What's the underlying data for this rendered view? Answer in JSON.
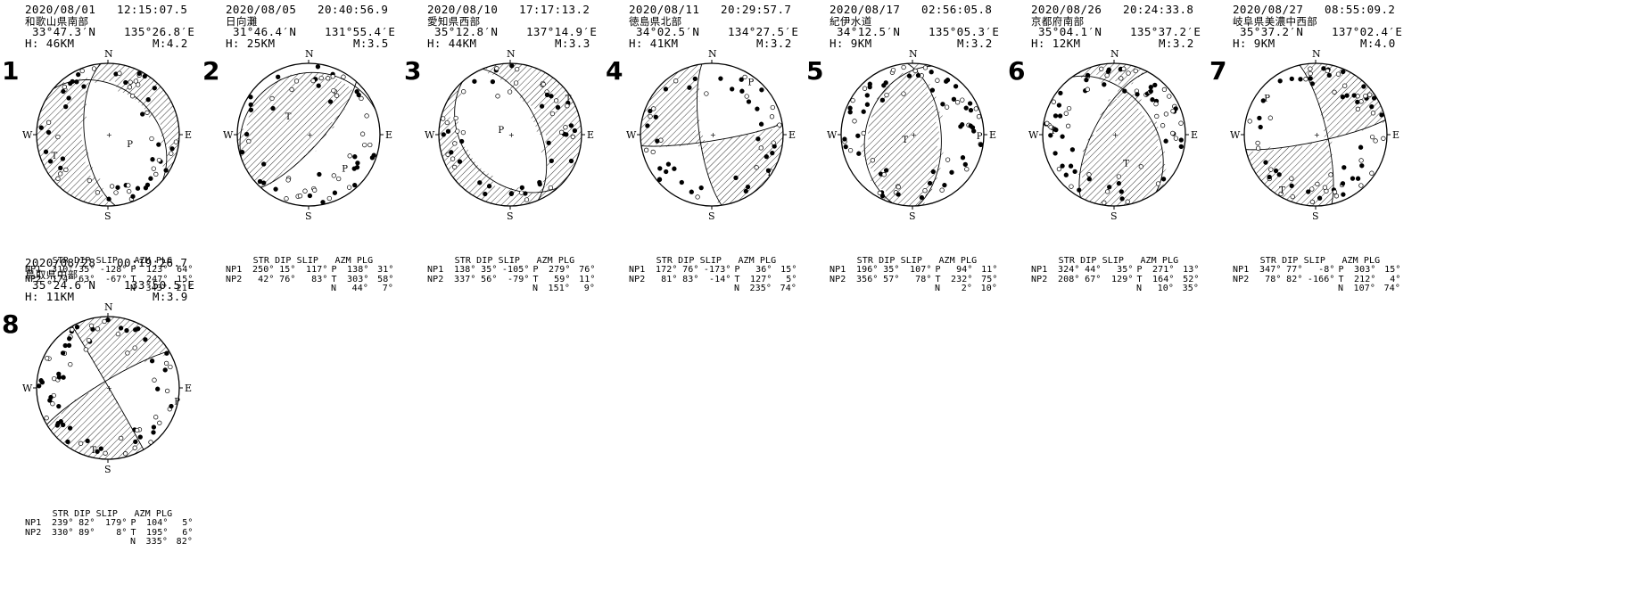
{
  "events": [
    {
      "id": "1",
      "date": "2020/08/01",
      "time": "12:15:07.5",
      "region": "和歌山県南部",
      "lat": "33°47.3′N",
      "lon": "135°26.8′E",
      "depth": "H: 46KM",
      "mag": "M:4.2",
      "np1": {
        "str": "310°",
        "dip": "35°",
        "slip": "-128°"
      },
      "np2": {
        "str": "174°",
        "dip": "63°",
        "slip": "-67°"
      },
      "p": {
        "azm": "123°",
        "plg": "64°"
      },
      "t": {
        "azm": "247°",
        "plg": "15°"
      },
      "n": {
        "azm": "343°",
        "plg": "21°"
      }
    },
    {
      "id": "2",
      "date": "2020/08/05",
      "time": "20:40:56.9",
      "region": "日向灘",
      "lat": "31°46.4′N",
      "lon": "131°55.4′E",
      "depth": "H: 25KM",
      "mag": "M:3.5",
      "np1": {
        "str": "250°",
        "dip": "15°",
        "slip": "117°"
      },
      "np2": {
        "str": "42°",
        "dip": "76°",
        "slip": "83°"
      },
      "p": {
        "azm": "138°",
        "plg": "31°"
      },
      "t": {
        "azm": "303°",
        "plg": "58°"
      },
      "n": {
        "azm": "44°",
        "plg": "7°"
      }
    },
    {
      "id": "3",
      "date": "2020/08/10",
      "time": "17:17:13.2",
      "region": "愛知県西部",
      "lat": "35°12.8′N",
      "lon": "137°14.9′E",
      "depth": "H: 44KM",
      "mag": "M:3.3",
      "np1": {
        "str": "138°",
        "dip": "35°",
        "slip": "-105°"
      },
      "np2": {
        "str": "337°",
        "dip": "56°",
        "slip": "-79°"
      },
      "p": {
        "azm": "279°",
        "plg": "76°"
      },
      "t": {
        "azm": "59°",
        "plg": "11°"
      },
      "n": {
        "azm": "151°",
        "plg": "9°"
      }
    },
    {
      "id": "4",
      "date": "2020/08/11",
      "time": "20:29:57.7",
      "region": "徳島県北部",
      "lat": "34°02.5′N",
      "lon": "134°27.5′E",
      "depth": "H: 41KM",
      "mag": "M:3.2",
      "np1": {
        "str": "172°",
        "dip": "76°",
        "slip": "-173°"
      },
      "np2": {
        "str": "81°",
        "dip": "83°",
        "slip": "-14°"
      },
      "p": {
        "azm": "36°",
        "plg": "15°"
      },
      "t": {
        "azm": "127°",
        "plg": "5°"
      },
      "n": {
        "azm": "235°",
        "plg": "74°"
      }
    },
    {
      "id": "5",
      "date": "2020/08/17",
      "time": "02:56:05.8",
      "region": "紀伊水道",
      "lat": "34°12.5′N",
      "lon": "135°05.3′E",
      "depth": "H: 9KM",
      "mag": "M:3.2",
      "np1": {
        "str": "196°",
        "dip": "35°",
        "slip": "107°"
      },
      "np2": {
        "str": "356°",
        "dip": "57°",
        "slip": "78°"
      },
      "p": {
        "azm": "94°",
        "plg": "11°"
      },
      "t": {
        "azm": "232°",
        "plg": "75°"
      },
      "n": {
        "azm": "2°",
        "plg": "10°"
      }
    },
    {
      "id": "6",
      "date": "2020/08/26",
      "time": "20:24:33.8",
      "region": "京都府南部",
      "lat": "35°04.1′N",
      "lon": "135°37.2′E",
      "depth": "H: 12KM",
      "mag": "M:3.2",
      "np1": {
        "str": "324°",
        "dip": "44°",
        "slip": "35°"
      },
      "np2": {
        "str": "208°",
        "dip": "67°",
        "slip": "129°"
      },
      "p": {
        "azm": "271°",
        "plg": "13°"
      },
      "t": {
        "azm": "164°",
        "plg": "52°"
      },
      "n": {
        "azm": "10°",
        "plg": "35°"
      }
    },
    {
      "id": "7",
      "date": "2020/08/27",
      "time": "08:55:09.2",
      "region": "岐阜県美濃中西部",
      "lat": "35°37.2′N",
      "lon": "137°02.4′E",
      "depth": "H: 9KM",
      "mag": "M:4.0",
      "np1": {
        "str": "347°",
        "dip": "77°",
        "slip": "-8°"
      },
      "np2": {
        "str": "78°",
        "dip": "82°",
        "slip": "-166°"
      },
      "p": {
        "azm": "303°",
        "plg": "15°"
      },
      "t": {
        "azm": "212°",
        "plg": "4°"
      },
      "n": {
        "azm": "107°",
        "plg": "74°"
      }
    },
    {
      "id": "8",
      "date": "2020/08/28",
      "time": "00:19:26.7",
      "region": "鳥取県中部",
      "lat": "35°24.6′N",
      "lon": "133°50.5′E",
      "depth": "H: 11KM",
      "mag": "M:3.9",
      "np1": {
        "str": "239°",
        "dip": "82°",
        "slip": "179°"
      },
      "np2": {
        "str": "330°",
        "dip": "89°",
        "slip": "8°"
      },
      "p": {
        "azm": "104°",
        "plg": "5°"
      },
      "t": {
        "azm": "195°",
        "plg": "6°"
      },
      "n": {
        "azm": "335°",
        "plg": "82°"
      }
    }
  ],
  "labels": {
    "north": "N",
    "south": "S",
    "west": "W",
    "east": "E",
    "p_axis": "P",
    "t_axis": "T",
    "col_header": "STR DIP SLIP",
    "azm_header": "AZM PLG",
    "np1": "NP1",
    "np2": "NP2",
    "p": "P",
    "t": "T",
    "n": "N"
  }
}
